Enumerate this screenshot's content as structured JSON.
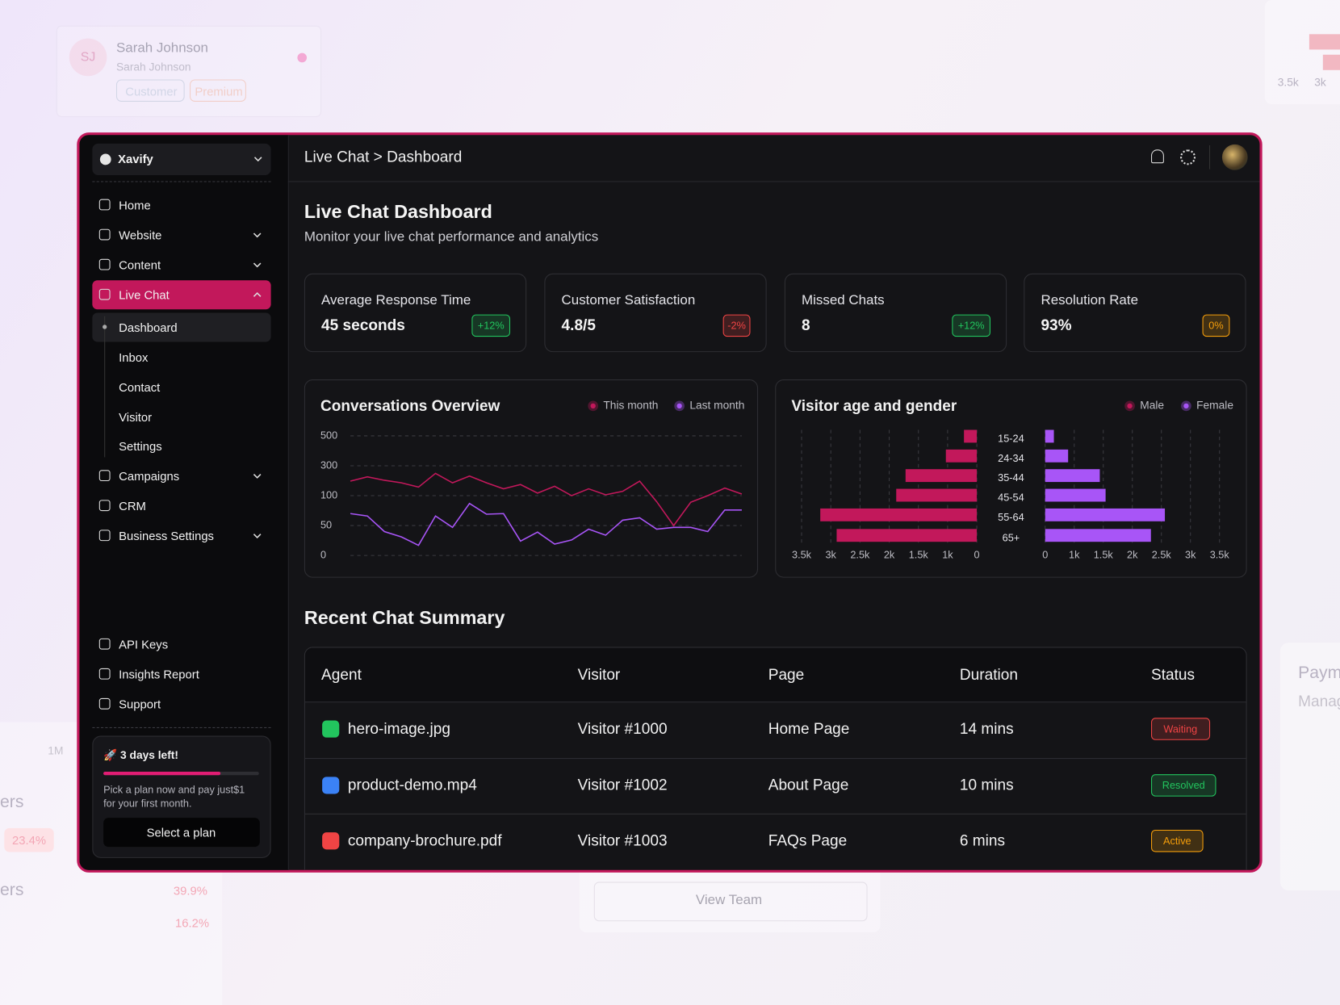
{
  "background": {
    "profile": {
      "initials": "SJ",
      "name": "Sarah Johnson",
      "subtitle": "Sarah Johnson",
      "tags": [
        "Customer",
        "Premium"
      ]
    },
    "fragments": [
      "3.5k",
      "3k",
      "Paym",
      "Manag",
      "1M",
      "ers",
      "23.4%",
      "ers",
      "39.9%",
      "16.2%",
      "View Team"
    ]
  },
  "sidebar": {
    "workspace": "Xavify",
    "nav": [
      "Home",
      "Website",
      "Content",
      "Live Chat"
    ],
    "subnav": [
      "Dashboard",
      "Inbox",
      "Contact",
      "Visitor",
      "Settings"
    ],
    "nav_more": [
      "Campaigns",
      "CRM",
      "Business Settings"
    ],
    "bottom_nav": [
      "API Keys",
      "Insights Report",
      "Support"
    ],
    "trial": {
      "title": "🚀 3 days left!",
      "text": "Pick a plan now and pay just$1 for your first month.",
      "button": "Select a plan",
      "progress": 75
    }
  },
  "header": {
    "breadcrumb": "Live Chat > Dashboard"
  },
  "page": {
    "title": "Live Chat Dashboard",
    "subtitle": "Monitor your live chat performance and analytics"
  },
  "stats": [
    {
      "label": "Average Response Time",
      "value": "45 seconds",
      "change": "+12%",
      "color": "#22c55e"
    },
    {
      "label": "Customer Satisfaction",
      "value": "4.8/5",
      "change": "-2%",
      "color": "#ef4444"
    },
    {
      "label": "Missed Chats",
      "value": "8",
      "change": "+12%",
      "color": "#22c55e"
    },
    {
      "label": "Resolution Rate",
      "value": "93%",
      "change": "0%",
      "color": "#f59e0b"
    }
  ],
  "chart_data": [
    {
      "type": "line",
      "title": "Conversations Overview",
      "ylim": [
        0,
        500
      ],
      "yticks": [
        500,
        300,
        100,
        50,
        0
      ],
      "grid": true,
      "series": [
        {
          "name": "This month",
          "color": "#c2185b",
          "values": [
            197,
            226,
            203,
            186,
            157,
            249,
            186,
            231,
            186,
            146,
            174,
            117,
            163,
            100,
            146,
            106,
            129,
            197,
            90,
            50,
            89,
            100,
            151,
            111
          ]
        },
        {
          "name": "Last month",
          "color": "#a855f7",
          "values": [
            70,
            66,
            40,
            31,
            17,
            66,
            47,
            87,
            69,
            70,
            24,
            39,
            19,
            26,
            44,
            34,
            59,
            63,
            44,
            47,
            47,
            40,
            76,
            76
          ]
        }
      ]
    },
    {
      "type": "pyramid",
      "title": "Visitor age and gender",
      "grid": true,
      "categories": [
        "15-24",
        "24-34",
        "35-44",
        "45-54",
        "55-64",
        "65+"
      ],
      "left_xticks": [
        {
          "value": 3500,
          "label": "3.5k"
        },
        {
          "value": 3000,
          "label": "3k"
        },
        {
          "value": 2500,
          "label": "2.5k"
        },
        {
          "value": 2000,
          "label": "2k"
        },
        {
          "value": 1500,
          "label": "1.5k"
        },
        {
          "value": 1000,
          "label": "1k"
        },
        0
      ],
      "right_xticks": [
        0,
        {
          "value": 1000,
          "label": "1k"
        },
        {
          "value": 1500,
          "label": "1.5k"
        },
        {
          "value": 2000,
          "label": "2k"
        },
        {
          "value": 2500,
          "label": "2.5k"
        },
        {
          "value": 3000,
          "label": "3k"
        },
        {
          "value": 3500,
          "label": "3.5k"
        }
      ],
      "series": [
        {
          "name": "Male",
          "color": "#c2185b",
          "values": [
            440,
            1030,
            1720,
            1880,
            3180,
            2900
          ]
        },
        {
          "name": "Female",
          "color": "#a855f7",
          "values": [
            300,
            790,
            1440,
            1540,
            2560,
            2320
          ]
        }
      ]
    }
  ],
  "table": {
    "title": "Recent Chat Summary",
    "columns": [
      "Agent",
      "Visitor",
      "Page",
      "Duration",
      "Status"
    ],
    "rows": [
      {
        "agent": "hero-image.jpg",
        "icon_color": "#22c55e",
        "visitor": "Visitor #1000",
        "page": "Home Page",
        "duration": "14 mins",
        "status": "Waiting",
        "status_color": "#ef4444"
      },
      {
        "agent": "product-demo.mp4",
        "icon_color": "#3b82f6",
        "visitor": "Visitor #1002",
        "page": "About Page",
        "duration": "10 mins",
        "status": "Resolved",
        "status_color": "#22c55e"
      },
      {
        "agent": "company-brochure.pdf",
        "icon_color": "#ef4444",
        "visitor": "Visitor #1003",
        "page": "FAQs Page",
        "duration": "6 mins",
        "status": "Active",
        "status_color": "#f59e0b"
      }
    ]
  }
}
